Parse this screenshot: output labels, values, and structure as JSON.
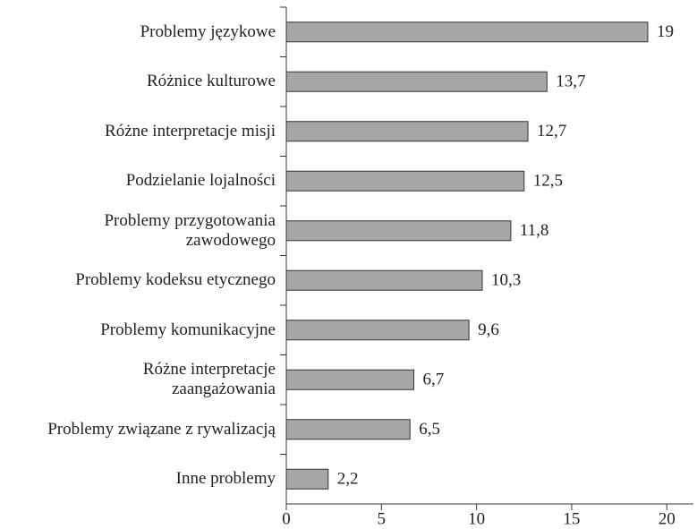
{
  "chart_data": {
    "type": "bar",
    "orientation": "horizontal",
    "categories": [
      "Problemy językowe",
      "Różnice kulturowe",
      "Różne interpretacje misji",
      "Podzielanie lojalności",
      "Problemy przygotowania\nzawodowego",
      "Problemy kodeksu etycznego",
      "Problemy komunikacyjne",
      "Różne interpretacje\nzaangażowania",
      "Problemy związane z rywalizacją",
      "Inne problemy"
    ],
    "values": [
      19,
      13.7,
      12.7,
      12.5,
      11.8,
      10.3,
      9.6,
      6.7,
      6.5,
      2.2
    ],
    "value_labels": [
      "19",
      "13,7",
      "12,7",
      "12,5",
      "11,8",
      "10,3",
      "9,6",
      "6,7",
      "6,5",
      "2,2"
    ],
    "color": "#a6a6a6",
    "xlim": [
      0,
      21.4
    ],
    "xticks": [
      0,
      5,
      10,
      15,
      20
    ]
  }
}
